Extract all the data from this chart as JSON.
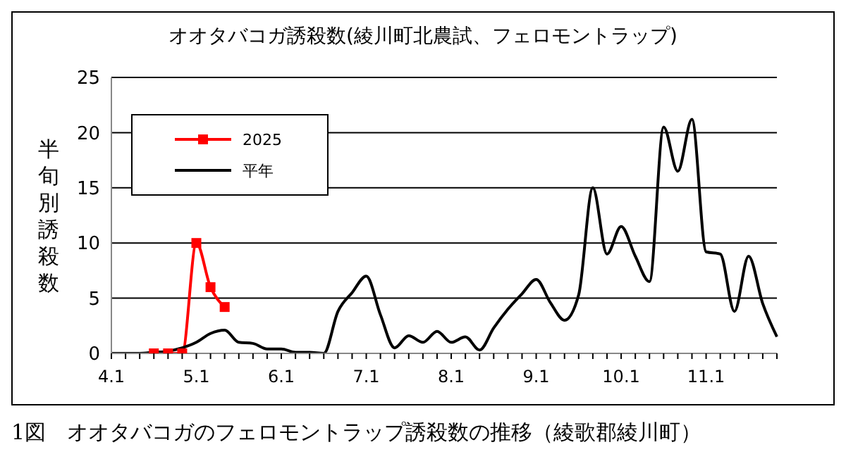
{
  "chart_data": {
    "type": "line",
    "title": "オオタバコガ誘殺数(綾川町北農試、フェロモントラップ)",
    "ylabel": "半旬別誘殺数",
    "categories": [
      "4.1",
      null,
      null,
      null,
      null,
      null,
      "5.1",
      null,
      null,
      null,
      null,
      null,
      "6.1",
      null,
      null,
      null,
      null,
      null,
      "7.1",
      null,
      null,
      null,
      null,
      null,
      "8.1",
      null,
      null,
      null,
      null,
      null,
      "9.1",
      null,
      null,
      null,
      null,
      null,
      "10.1",
      null,
      null,
      null,
      null,
      null,
      "11.1",
      null,
      null,
      null,
      null,
      null
    ],
    "series": [
      {
        "name": "2025",
        "color": "#ff0000",
        "marker": "square",
        "values": [
          null,
          null,
          null,
          0,
          0,
          0,
          10,
          6,
          4.2,
          null,
          null,
          null,
          null,
          null,
          null,
          null,
          null,
          null,
          null,
          null,
          null,
          null,
          null,
          null,
          null,
          null,
          null,
          null,
          null,
          null,
          null,
          null,
          null,
          null,
          null,
          null,
          null,
          null,
          null,
          null,
          null,
          null,
          null,
          null,
          null,
          null,
          null,
          null
        ]
      },
      {
        "name": "平年",
        "color": "#000000",
        "marker": "none",
        "values": [
          0,
          0,
          0,
          0.1,
          0.2,
          0.5,
          1.0,
          1.8,
          2.1,
          1.0,
          0.9,
          0.4,
          0.4,
          0.1,
          0.1,
          0,
          3.8,
          5.5,
          7.0,
          3.5,
          0.5,
          1.6,
          1.0,
          2.0,
          1.0,
          1.5,
          0.3,
          2.3,
          4.0,
          5.4,
          6.7,
          4.6,
          3.0,
          5.3,
          15.0,
          9.0,
          11.5,
          8.8,
          6.5,
          20.5,
          16.5,
          21.2,
          9.2,
          9.0,
          3.8,
          8.8,
          4.5,
          1.5
        ]
      }
    ],
    "ylim": [
      0,
      25
    ],
    "yticks": [
      0,
      5,
      10,
      15,
      20,
      25
    ],
    "grid": "y",
    "legend": "top left",
    "annotations": [
      "1図　オオタバコガのフェロモントラップ誘殺数の推移（綾歌郡綾川町）"
    ]
  }
}
